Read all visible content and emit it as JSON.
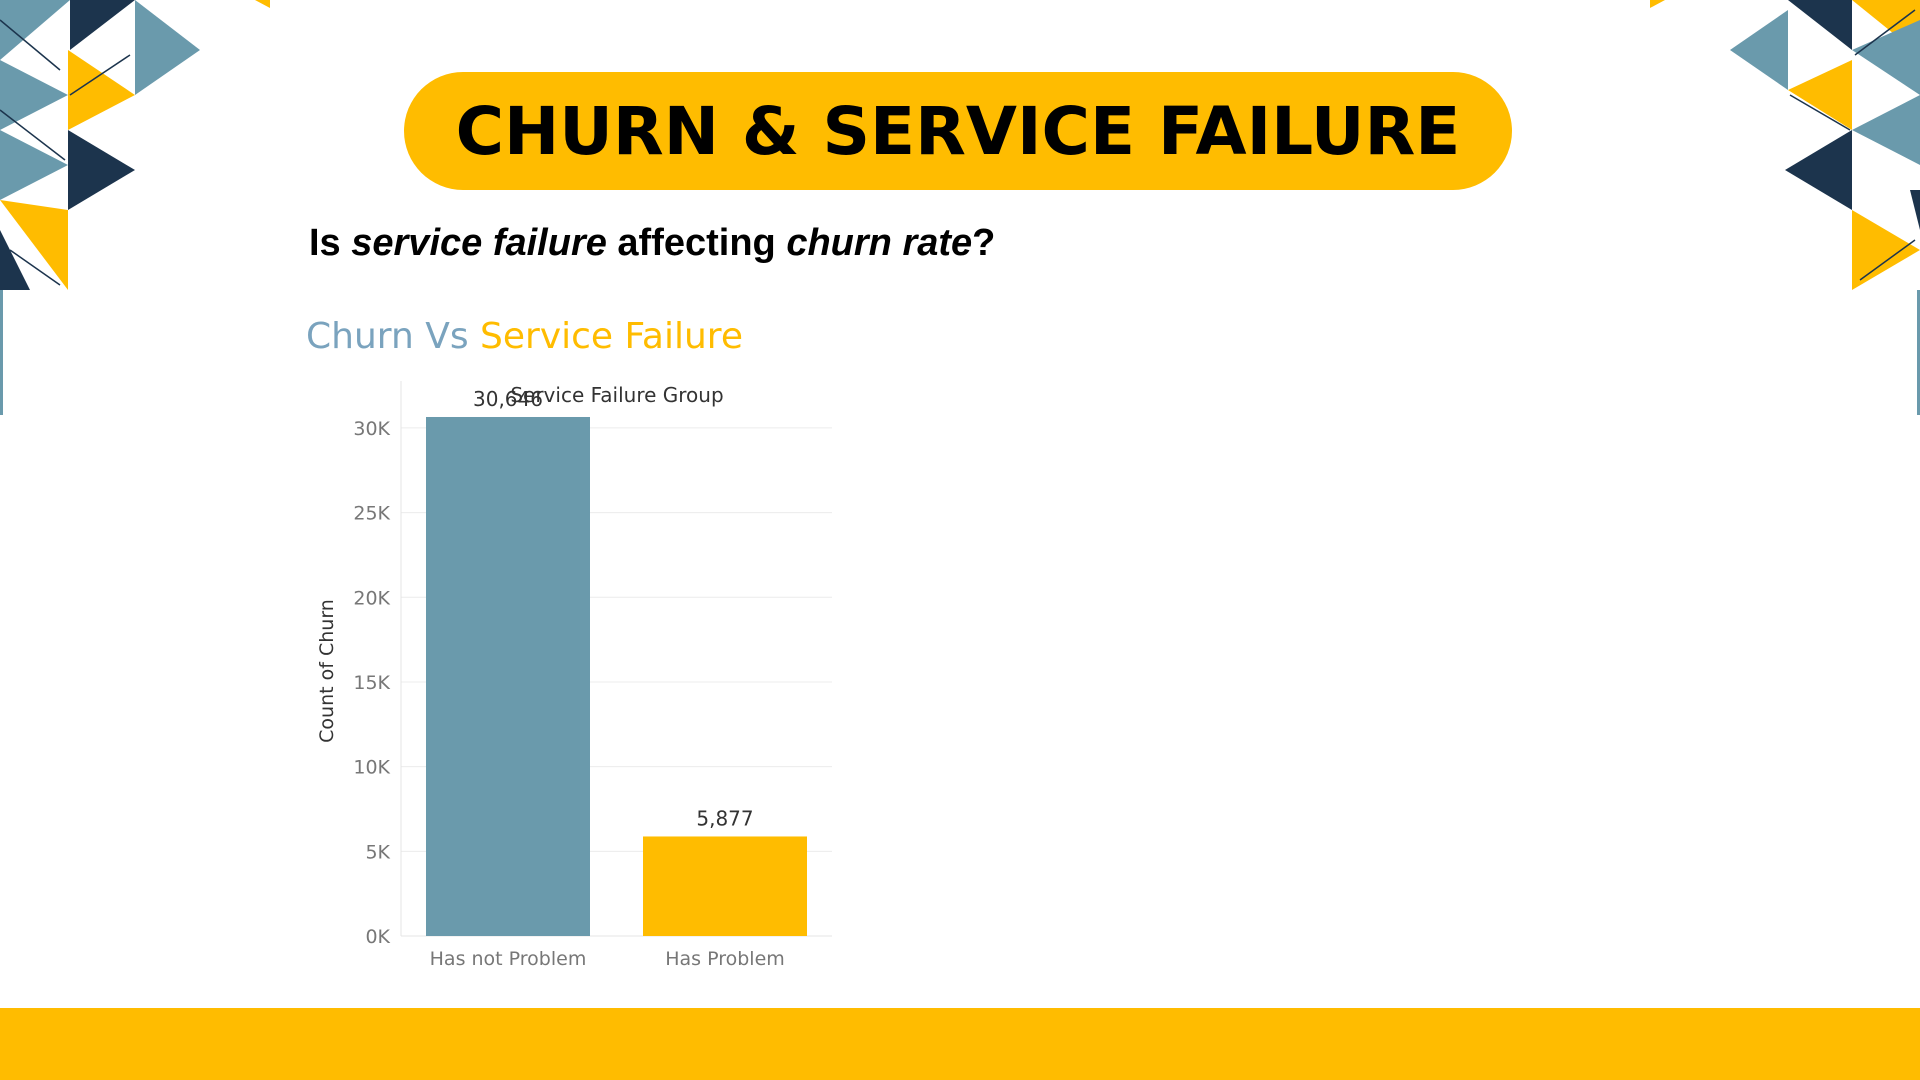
{
  "slide": {
    "title": "CHURN & SERVICE FAILURE",
    "question": {
      "p1": "Is ",
      "p2": "service failure",
      "p3": " affecting ",
      "p4": "churn rate",
      "p5": "?"
    },
    "chart_heading": {
      "part_a": "Churn Vs ",
      "part_b": "Service Failure"
    }
  },
  "colors": {
    "accent_yellow": "#FFBC00",
    "steel_blue": "#6A9AAC",
    "navy": "#1C344D",
    "light_blue": "#7AA3BE"
  },
  "chart_data": {
    "type": "bar",
    "title": "Service Failure Group",
    "xlabel": "",
    "ylabel": "Count of Churn",
    "categories": [
      "Has not Problem",
      "Has Problem"
    ],
    "values": [
      30646,
      5877
    ],
    "value_labels": [
      "30,646",
      "5,877"
    ],
    "bar_colors": [
      "#6A9AAC",
      "#FFBC00"
    ],
    "ylim": [
      0,
      31000
    ],
    "yticks": [
      0,
      5000,
      10000,
      15000,
      20000,
      25000,
      30000
    ],
    "ytick_labels": [
      "0K",
      "5K",
      "10K",
      "15K",
      "20K",
      "25K",
      "30K"
    ],
    "grid": true,
    "legend": "none"
  }
}
